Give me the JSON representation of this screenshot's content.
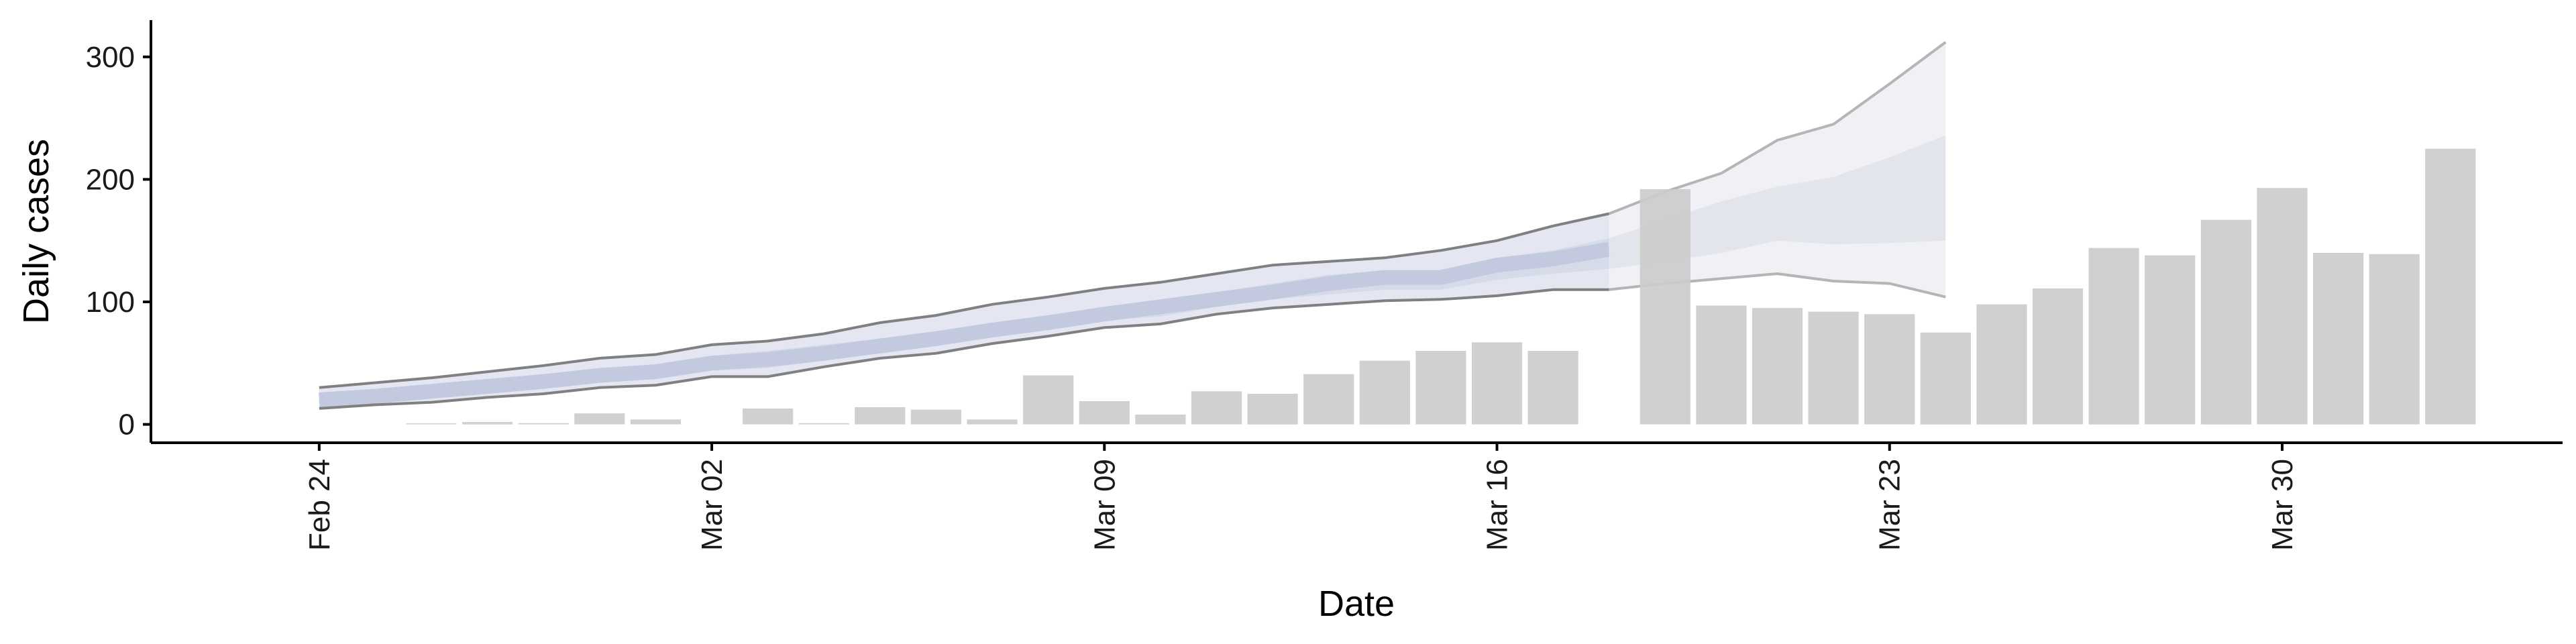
{
  "chart_data": {
    "type": "bar",
    "xlabel": "Date",
    "ylabel": "Daily cases",
    "ylim": [
      -15,
      330
    ],
    "yticks": [
      0,
      100,
      200,
      300
    ],
    "x_tick_labels": [
      "Feb 24",
      "Mar 02",
      "Mar 09",
      "Mar 16",
      "Mar 23",
      "Mar 30"
    ],
    "x_tick_dates": [
      "2020-02-24",
      "2020-03-02",
      "2020-03-09",
      "2020-03-16",
      "2020-03-23",
      "2020-03-30"
    ],
    "xlim": [
      "2020-02-21",
      "2020-04-04"
    ],
    "grid": false,
    "legend": "none",
    "colors": {
      "bars": "#cccccc",
      "band_outer": "#e4e7f1",
      "band_mid": "#d6dbea",
      "band_inner": "#c3c9de",
      "median_line": "#c3c9de",
      "bound_lines": "#808080",
      "forecast_outer": "#eeeff3",
      "forecast_mid": "#e1e3eb",
      "forecast_lines": "#b5b5b5"
    },
    "bars": [
      {
        "date": "2020-02-26",
        "value": 0
      },
      {
        "date": "2020-02-27",
        "value": 2
      },
      {
        "date": "2020-02-28",
        "value": 1
      },
      {
        "date": "2020-02-29",
        "value": 9
      },
      {
        "date": "2020-03-01",
        "value": 4
      },
      {
        "date": "2020-03-03",
        "value": 13
      },
      {
        "date": "2020-03-04",
        "value": 1
      },
      {
        "date": "2020-03-05",
        "value": 14
      },
      {
        "date": "2020-03-06",
        "value": 12
      },
      {
        "date": "2020-03-07",
        "value": 4
      },
      {
        "date": "2020-03-08",
        "value": 40
      },
      {
        "date": "2020-03-09",
        "value": 19
      },
      {
        "date": "2020-03-10",
        "value": 8
      },
      {
        "date": "2020-03-11",
        "value": 27
      },
      {
        "date": "2020-03-12",
        "value": 25
      },
      {
        "date": "2020-03-13",
        "value": 41
      },
      {
        "date": "2020-03-14",
        "value": 52
      },
      {
        "date": "2020-03-15",
        "value": 60
      },
      {
        "date": "2020-03-16",
        "value": 67
      },
      {
        "date": "2020-03-17",
        "value": 60
      },
      {
        "date": "2020-03-19",
        "value": 192
      },
      {
        "date": "2020-03-20",
        "value": 97
      },
      {
        "date": "2020-03-21",
        "value": 95
      },
      {
        "date": "2020-03-22",
        "value": 92
      },
      {
        "date": "2020-03-23",
        "value": 90
      },
      {
        "date": "2020-03-24",
        "value": 75
      },
      {
        "date": "2020-03-25",
        "value": 98
      },
      {
        "date": "2020-03-26",
        "value": 111
      },
      {
        "date": "2020-03-27",
        "value": 144
      },
      {
        "date": "2020-03-28",
        "value": 138
      },
      {
        "date": "2020-03-29",
        "value": 167
      },
      {
        "date": "2020-03-30",
        "value": 193
      },
      {
        "date": "2020-03-31",
        "value": 140
      },
      {
        "date": "2020-04-01",
        "value": 139
      },
      {
        "date": "2020-04-02",
        "value": 225
      }
    ],
    "estimate_band": {
      "start_date": "2020-02-24",
      "lower": [
        13,
        16,
        18,
        22,
        25,
        30,
        32,
        39,
        39,
        47,
        54,
        58,
        66,
        72,
        79,
        82,
        90,
        95,
        98,
        101,
        102,
        105,
        110,
        110,
        115,
        119,
        123,
        117,
        115,
        104
      ],
      "lower50": [
        17,
        20,
        23,
        27,
        31,
        35,
        38,
        44,
        46,
        52,
        59,
        64,
        72,
        78,
        85,
        88,
        96,
        102,
        106,
        110,
        110,
        118,
        123,
        127,
        133,
        140,
        150,
        147,
        148,
        150
      ],
      "median": [
        20,
        23,
        27,
        31,
        35,
        40,
        43,
        50,
        53,
        58,
        64,
        70,
        77,
        83,
        90,
        96,
        102,
        108,
        115,
        120,
        120,
        130,
        135,
        143,
        150,
        161,
        172,
        173,
        186,
        197
      ],
      "upper50": [
        23,
        27,
        31,
        35,
        40,
        45,
        49,
        56,
        60,
        65,
        70,
        76,
        83,
        89,
        96,
        102,
        108,
        115,
        122,
        126,
        126,
        136,
        142,
        152,
        167,
        182,
        194,
        202,
        218,
        236
      ],
      "upper": [
        30,
        34,
        38,
        43,
        48,
        54,
        57,
        65,
        68,
        74,
        83,
        89,
        98,
        104,
        111,
        116,
        123,
        130,
        133,
        136,
        142,
        150,
        162,
        172,
        190,
        205,
        232,
        245,
        278,
        312
      ]
    },
    "forecast_start_index": 23
  }
}
